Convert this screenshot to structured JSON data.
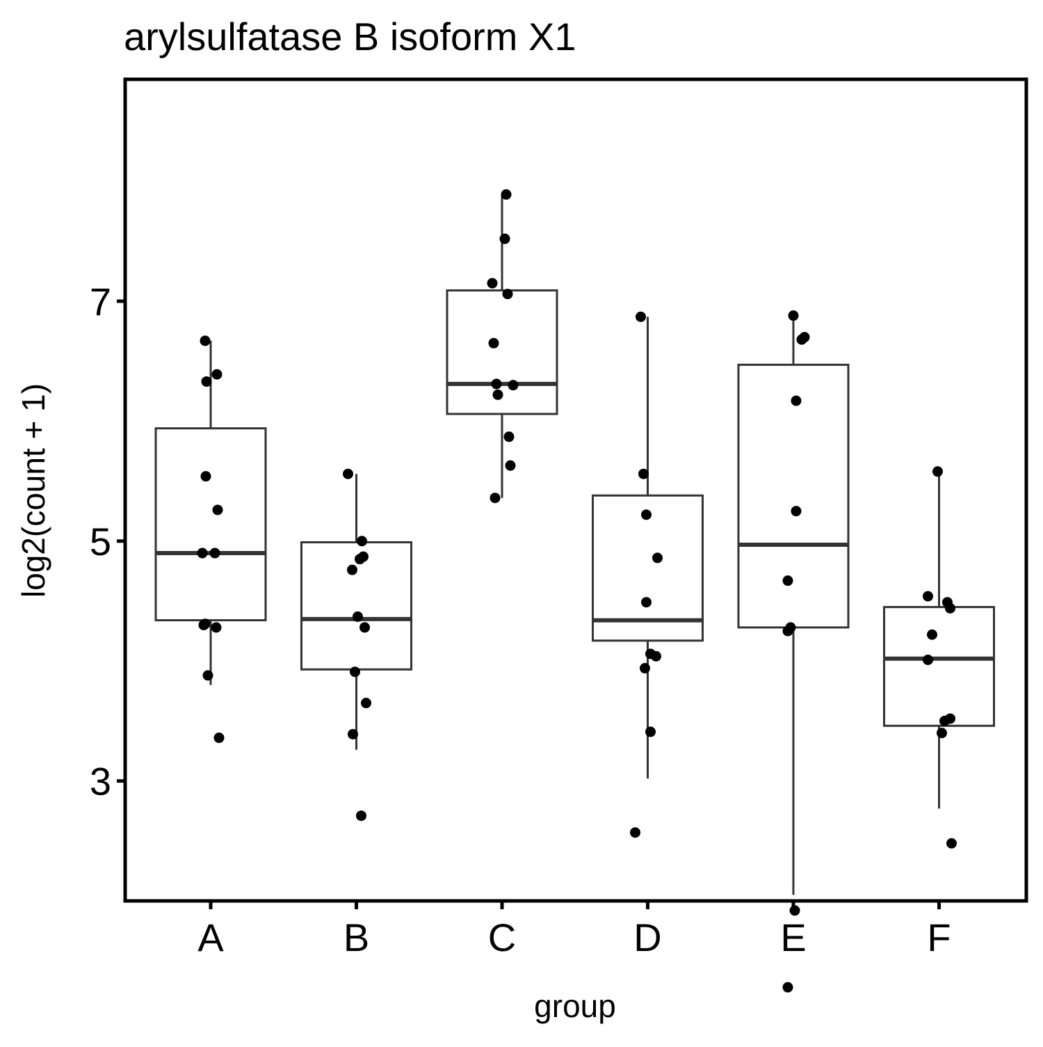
{
  "chart_data": {
    "type": "box",
    "title": "arylsulfatase B isoform X1",
    "xlabel": "group",
    "ylabel": "log2(count + 1)",
    "ylim": [
      2.0,
      8.85
    ],
    "yticks": [
      3,
      5,
      7
    ],
    "categories": [
      "A",
      "B",
      "C",
      "D",
      "E",
      "F"
    ],
    "grid": false,
    "legend": "none",
    "colors": {
      "box": "#333333",
      "point": "#000000",
      "frame": "#000000"
    },
    "boxes": [
      {
        "group": "A",
        "min": 3.8,
        "q1": 4.34,
        "median": 4.9,
        "q3": 5.94,
        "max": 6.67
      },
      {
        "group": "B",
        "min": 3.26,
        "q1": 3.93,
        "median": 4.35,
        "q3": 4.99,
        "max": 5.56
      },
      {
        "group": "C",
        "min": 5.36,
        "q1": 6.06,
        "median": 6.31,
        "q3": 7.09,
        "max": 7.89
      },
      {
        "group": "D",
        "min": 3.02,
        "q1": 4.17,
        "median": 4.34,
        "q3": 5.38,
        "max": 6.87
      },
      {
        "group": "E",
        "min": 2.05,
        "q1": 4.28,
        "median": 4.97,
        "q3": 6.47,
        "max": 6.88
      },
      {
        "group": "F",
        "min": 2.77,
        "q1": 3.46,
        "median": 4.02,
        "q3": 4.45,
        "max": 5.58
      }
    ],
    "points": [
      {
        "group": "A",
        "values": [
          6.67,
          6.33,
          6.39,
          5.54,
          5.26,
          4.9,
          4.9,
          4.31,
          4.3,
          4.28,
          3.88,
          3.36
        ]
      },
      {
        "group": "B",
        "values": [
          5.56,
          5.0,
          4.85,
          4.87,
          4.76,
          4.37,
          4.28,
          3.91,
          3.65,
          3.39,
          2.71
        ]
      },
      {
        "group": "C",
        "values": [
          7.89,
          7.52,
          7.15,
          7.06,
          6.65,
          6.3,
          6.31,
          6.22,
          5.87,
          5.63,
          5.36
        ]
      },
      {
        "group": "D",
        "values": [
          6.87,
          5.56,
          5.22,
          4.86,
          4.49,
          4.06,
          4.04,
          3.94,
          3.41,
          2.57
        ]
      },
      {
        "group": "E",
        "values": [
          6.88,
          6.7,
          6.68,
          6.17,
          5.25,
          4.67,
          4.28,
          4.25,
          1.92,
          1.28
        ]
      },
      {
        "group": "F",
        "values": [
          5.58,
          4.54,
          4.49,
          4.44,
          4.22,
          4.01,
          3.52,
          3.5,
          3.4,
          2.48
        ]
      }
    ]
  }
}
